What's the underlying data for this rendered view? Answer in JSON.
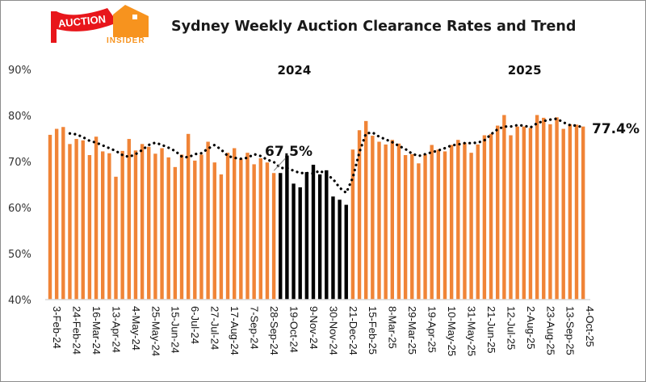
{
  "logo": {
    "word1": "AUCTION",
    "word2": "INSIDER",
    "flag_color": "#e8161b",
    "house_color": "#f7931e"
  },
  "chart_data": {
    "type": "bar",
    "title": "Sydney Weekly Auction Clearance Rates and Trend",
    "xlabel": "",
    "ylabel": "",
    "ylim": [
      40,
      90
    ],
    "yticks": [
      40,
      50,
      60,
      70,
      80,
      90
    ],
    "ytick_format": "percent",
    "grid": false,
    "year_labels": [
      {
        "text": "2024",
        "at_index": 37
      },
      {
        "text": "2025",
        "at_index": 72
      }
    ],
    "tick_every": 3,
    "tick_labels": [
      "3-Feb-24",
      "24-Feb-24",
      "16-Mar-24",
      "13-Apr-24",
      "4-May-24",
      "25-May-24",
      "15-Jun-24",
      "6-Jul-24",
      "27-Jul-24",
      "17-Aug-24",
      "7-Sep-24",
      "28-Sep-24",
      "19-Oct-24",
      "9-Nov-24",
      "30-Nov-24",
      "21-Dec-24",
      "15-Feb-25",
      "8-Mar-25",
      "29-Mar-25",
      "19-Apr-25",
      "10-May-25",
      "31-May-25",
      "21-Jun-25",
      "12-Jul-25",
      "2-Aug-25",
      "23-Aug-25",
      "13-Sep-25",
      "4-Oct-25"
    ],
    "colors": {
      "bar": "#f08437",
      "highlight_bar": "#000000",
      "trend": "#000000"
    },
    "highlight_range": [
      35,
      45
    ],
    "series": [
      {
        "name": "Weekly clearance rate (%)",
        "type": "bar",
        "values": [
          75.8,
          77.1,
          77.5,
          73.8,
          74.9,
          74.6,
          71.4,
          75.4,
          72.2,
          71.8,
          66.7,
          72.3,
          74.9,
          72.4,
          73.8,
          73.2,
          71.7,
          72.9,
          70.9,
          68.8,
          71.5,
          76.0,
          70.2,
          71.5,
          74.3,
          69.8,
          67.2,
          71.9,
          72.9,
          70.6,
          71.9,
          69.4,
          70.7,
          69.8,
          67.5,
          67.5,
          71.3,
          65.2,
          64.4,
          67.7,
          69.3,
          67.2,
          68.1,
          62.4,
          61.7,
          60.6,
          72.6,
          76.8,
          78.8,
          75.6,
          74.3,
          73.7,
          74.7,
          73.9,
          71.4,
          71.6,
          69.6,
          71.6,
          73.6,
          72.6,
          72.2,
          73.6,
          74.7,
          74.1,
          71.9,
          73.7,
          75.7,
          76.0,
          77.8,
          80.1,
          75.7,
          77.6,
          77.6,
          77.3,
          80.1,
          79.5,
          78.1,
          79.6,
          77.1,
          78.1,
          78.0,
          77.6
        ]
      },
      {
        "name": "Trend",
        "type": "line",
        "start_index": 3,
        "values": [
          76.1,
          75.9,
          75.3,
          74.5,
          74.1,
          73.5,
          72.9,
          72.3,
          71.4,
          71.0,
          71.6,
          72.5,
          73.6,
          74.1,
          73.6,
          73.0,
          72.3,
          71.1,
          70.9,
          71.6,
          71.8,
          72.8,
          73.6,
          72.6,
          71.2,
          70.8,
          70.6,
          70.8,
          71.6,
          71.2,
          70.4,
          69.9,
          68.6,
          68.6,
          68.0,
          67.5,
          67.5,
          67.4,
          68.0,
          67.2,
          66.2,
          64.3,
          63.2,
          66.5,
          72.0,
          76.1,
          76.3,
          75.4,
          74.8,
          74.2,
          73.4,
          72.7,
          71.7,
          71.2,
          71.6,
          72.0,
          72.4,
          72.9,
          73.5,
          73.7,
          74.0,
          74.0,
          74.1,
          74.6,
          75.9,
          77.0,
          77.6,
          77.6,
          77.9,
          77.8,
          77.4,
          78.3,
          78.8,
          79.1,
          79.3,
          78.5,
          77.9,
          77.8,
          77.4
        ]
      }
    ],
    "annotations": [
      {
        "text": "67.5%",
        "at_index": 35,
        "value": 67.5
      },
      {
        "text": "77.4%",
        "at_index": 81,
        "value": 77.4
      }
    ]
  }
}
